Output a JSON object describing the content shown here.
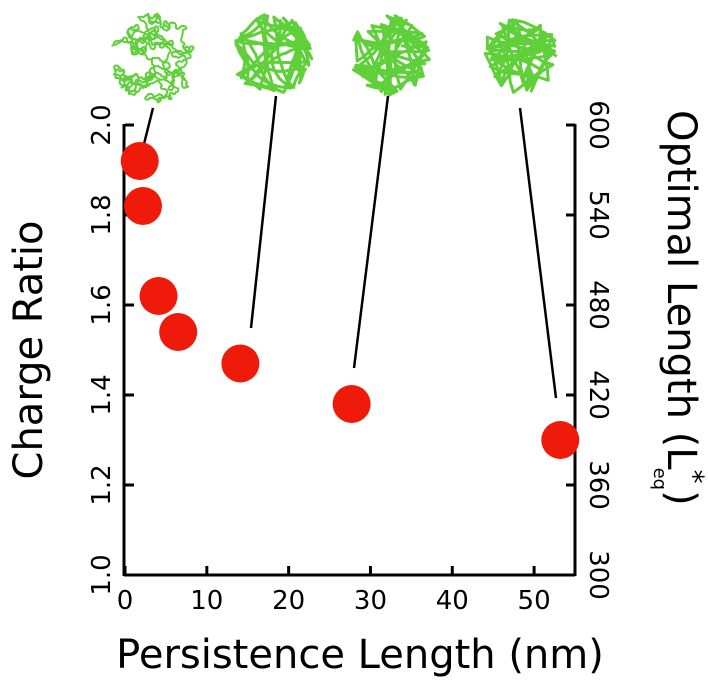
{
  "chart_data": {
    "type": "scatter",
    "xlabel": "Persistence Length (nm)",
    "ylabel": "Charge Ratio",
    "y2label": [
      "Optimal Length (L",
      "*",
      "eq",
      ")"
    ],
    "x": [
      1.8,
      2.2,
      4.1,
      6.5,
      14.1,
      27.7,
      53.2
    ],
    "series": [
      {
        "color": "#f01a0a",
        "values": [
          1.92,
          1.82,
          1.62,
          1.54,
          1.47,
          1.38,
          1.3
        ]
      }
    ],
    "xlim": [
      0,
      55
    ],
    "xticks": [
      0,
      10,
      20,
      30,
      40,
      50
    ],
    "ylim": [
      1.0,
      2.0
    ],
    "yticks": [
      {
        "value": 1.0,
        "label": "1.0"
      },
      1.2,
      1.4,
      1.6,
      1.8,
      {
        "value": 2.0,
        "label": "2.0"
      }
    ],
    "y2lim": [
      300,
      600
    ],
    "y2ticks": [
      300,
      360,
      420,
      480,
      540,
      600
    ]
  }
}
